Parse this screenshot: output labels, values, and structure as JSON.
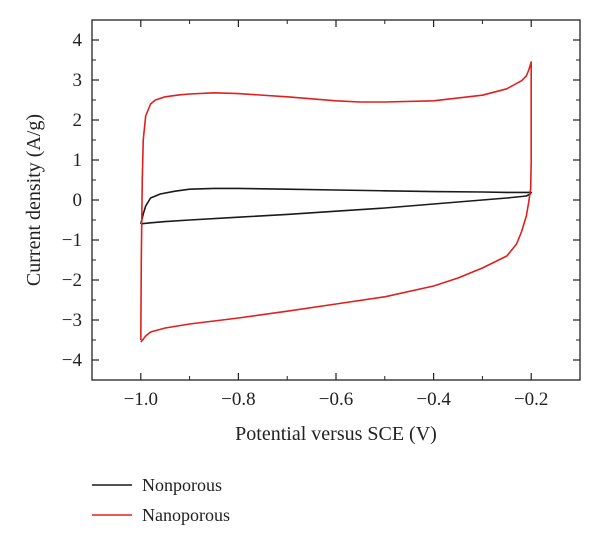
{
  "chart_data": {
    "type": "line",
    "title": "",
    "xlabel": "Potential versus SCE (V)",
    "ylabel": "Current density (A/g)",
    "xlim": [
      -1.1,
      -0.1
    ],
    "ylim": [
      -4.5,
      4.5
    ],
    "x_ticks": [
      -1.0,
      -0.8,
      -0.6,
      -0.4,
      -0.2
    ],
    "x_tick_labels": [
      "−1.0",
      "−0.8",
      "−0.6",
      "−0.4",
      "−0.2"
    ],
    "y_ticks": [
      4,
      3,
      2,
      1,
      0,
      -1,
      -2,
      -3,
      -4
    ],
    "y_tick_labels": [
      "4",
      "3",
      "2",
      "1",
      "0",
      "−1",
      "−2",
      "−3",
      "−4"
    ],
    "grid": false,
    "legend_position": "bottom-left, below plot",
    "series": [
      {
        "name": "Nonporous",
        "color": "#1a1a1a",
        "x": [
          -1.0,
          -0.995,
          -0.99,
          -0.98,
          -0.96,
          -0.93,
          -0.9,
          -0.85,
          -0.8,
          -0.7,
          -0.6,
          -0.5,
          -0.4,
          -0.3,
          -0.25,
          -0.21,
          -0.2,
          -0.202,
          -0.21,
          -0.25,
          -0.3,
          -0.4,
          -0.5,
          -0.6,
          -0.7,
          -0.8,
          -0.9,
          -0.95,
          -0.98,
          -0.995,
          -1.0
        ],
        "y": [
          -0.6,
          -0.35,
          -0.15,
          0.05,
          0.15,
          0.22,
          0.27,
          0.29,
          0.29,
          0.27,
          0.25,
          0.23,
          0.21,
          0.2,
          0.19,
          0.19,
          0.19,
          0.15,
          0.1,
          0.05,
          0.0,
          -0.1,
          -0.2,
          -0.28,
          -0.36,
          -0.43,
          -0.5,
          -0.54,
          -0.57,
          -0.59,
          -0.6
        ]
      },
      {
        "name": "Nanoporous",
        "color": "#e0201e",
        "x": [
          -1.0,
          -0.999,
          -0.997,
          -0.995,
          -0.99,
          -0.98,
          -0.97,
          -0.95,
          -0.92,
          -0.9,
          -0.85,
          -0.8,
          -0.7,
          -0.6,
          -0.55,
          -0.5,
          -0.4,
          -0.3,
          -0.25,
          -0.22,
          -0.21,
          -0.205,
          -0.2,
          -0.2,
          -0.201,
          -0.205,
          -0.21,
          -0.22,
          -0.23,
          -0.25,
          -0.3,
          -0.35,
          -0.4,
          -0.5,
          -0.6,
          -0.7,
          -0.8,
          -0.9,
          -0.95,
          -0.98,
          -0.99,
          -0.995,
          -1.0
        ],
        "y": [
          -3.5,
          -1.5,
          0.5,
          1.5,
          2.1,
          2.4,
          2.5,
          2.58,
          2.63,
          2.65,
          2.68,
          2.66,
          2.58,
          2.48,
          2.45,
          2.45,
          2.48,
          2.62,
          2.78,
          2.98,
          3.1,
          3.25,
          3.45,
          1.0,
          0.3,
          -0.05,
          -0.4,
          -0.8,
          -1.1,
          -1.4,
          -1.7,
          -1.95,
          -2.15,
          -2.42,
          -2.6,
          -2.78,
          -2.95,
          -3.1,
          -3.2,
          -3.3,
          -3.4,
          -3.48,
          -3.55
        ]
      }
    ]
  }
}
